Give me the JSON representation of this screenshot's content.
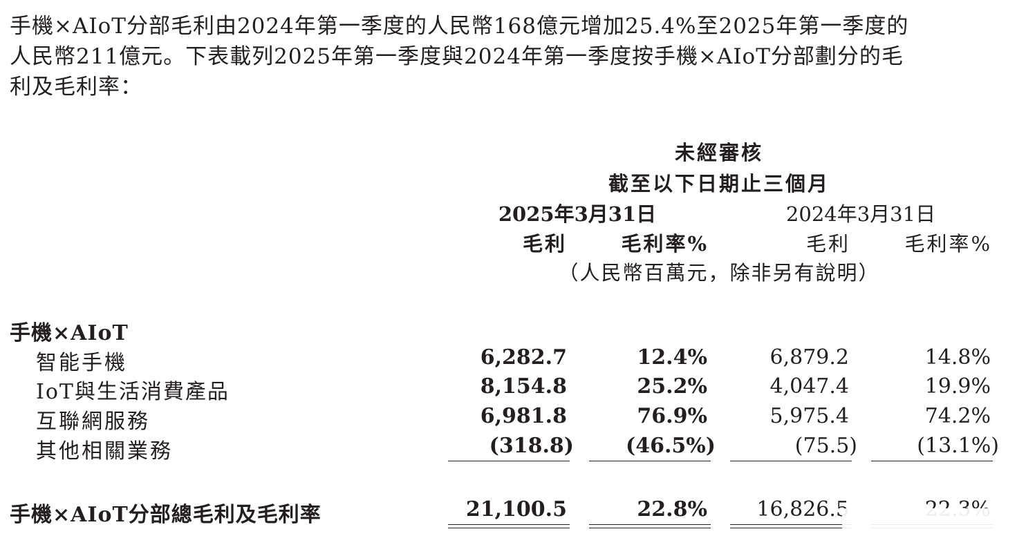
{
  "intro": {
    "line1": "手機×AIoT分部毛利由2024年第一季度的人民幣168億元增加25.4%至2025年第一季度的",
    "line2": "人民幣211億元。下表載列2025年第一季度與2024年第一季度按手機×AIoT分部劃分的毛",
    "line3": "利及毛利率："
  },
  "header": {
    "unaudited": "未經審核",
    "period": "截至以下日期止三個月",
    "date_2025": "2025年3月31日",
    "date_2024": "2024年3月31日",
    "gross_profit": "毛利",
    "gross_margin": "毛利率%",
    "unit": "（人民幣百萬元，除非另有說明）"
  },
  "section_title": "手機×AIoT",
  "rows": [
    {
      "label": "智能手機",
      "gp_2025": "6,282.7",
      "gm_2025": "12.4%",
      "gp_2024": "6,879.2",
      "gm_2024": "14.8%"
    },
    {
      "label": "IoT與生活消費產品",
      "gp_2025": "8,154.8",
      "gm_2025": "25.2%",
      "gp_2024": "4,047.4",
      "gm_2024": "19.9%"
    },
    {
      "label": "互聯網服務",
      "gp_2025": "6,981.8",
      "gm_2025": "76.9%",
      "gp_2024": "5,975.4",
      "gm_2024": "74.2%"
    },
    {
      "label": "其他相關業務",
      "gp_2025": "(318.8)",
      "gm_2025": "(46.5%)",
      "gp_2024": "(75.5)",
      "gm_2024": "(13.1%)"
    }
  ],
  "total": {
    "label": "手機×AIoT分部總毛利及毛利率",
    "gp_2025": "21,100.5",
    "gm_2025": "22.8%",
    "gp_2024": "16,826.5",
    "gm_2024": "22.3%"
  }
}
